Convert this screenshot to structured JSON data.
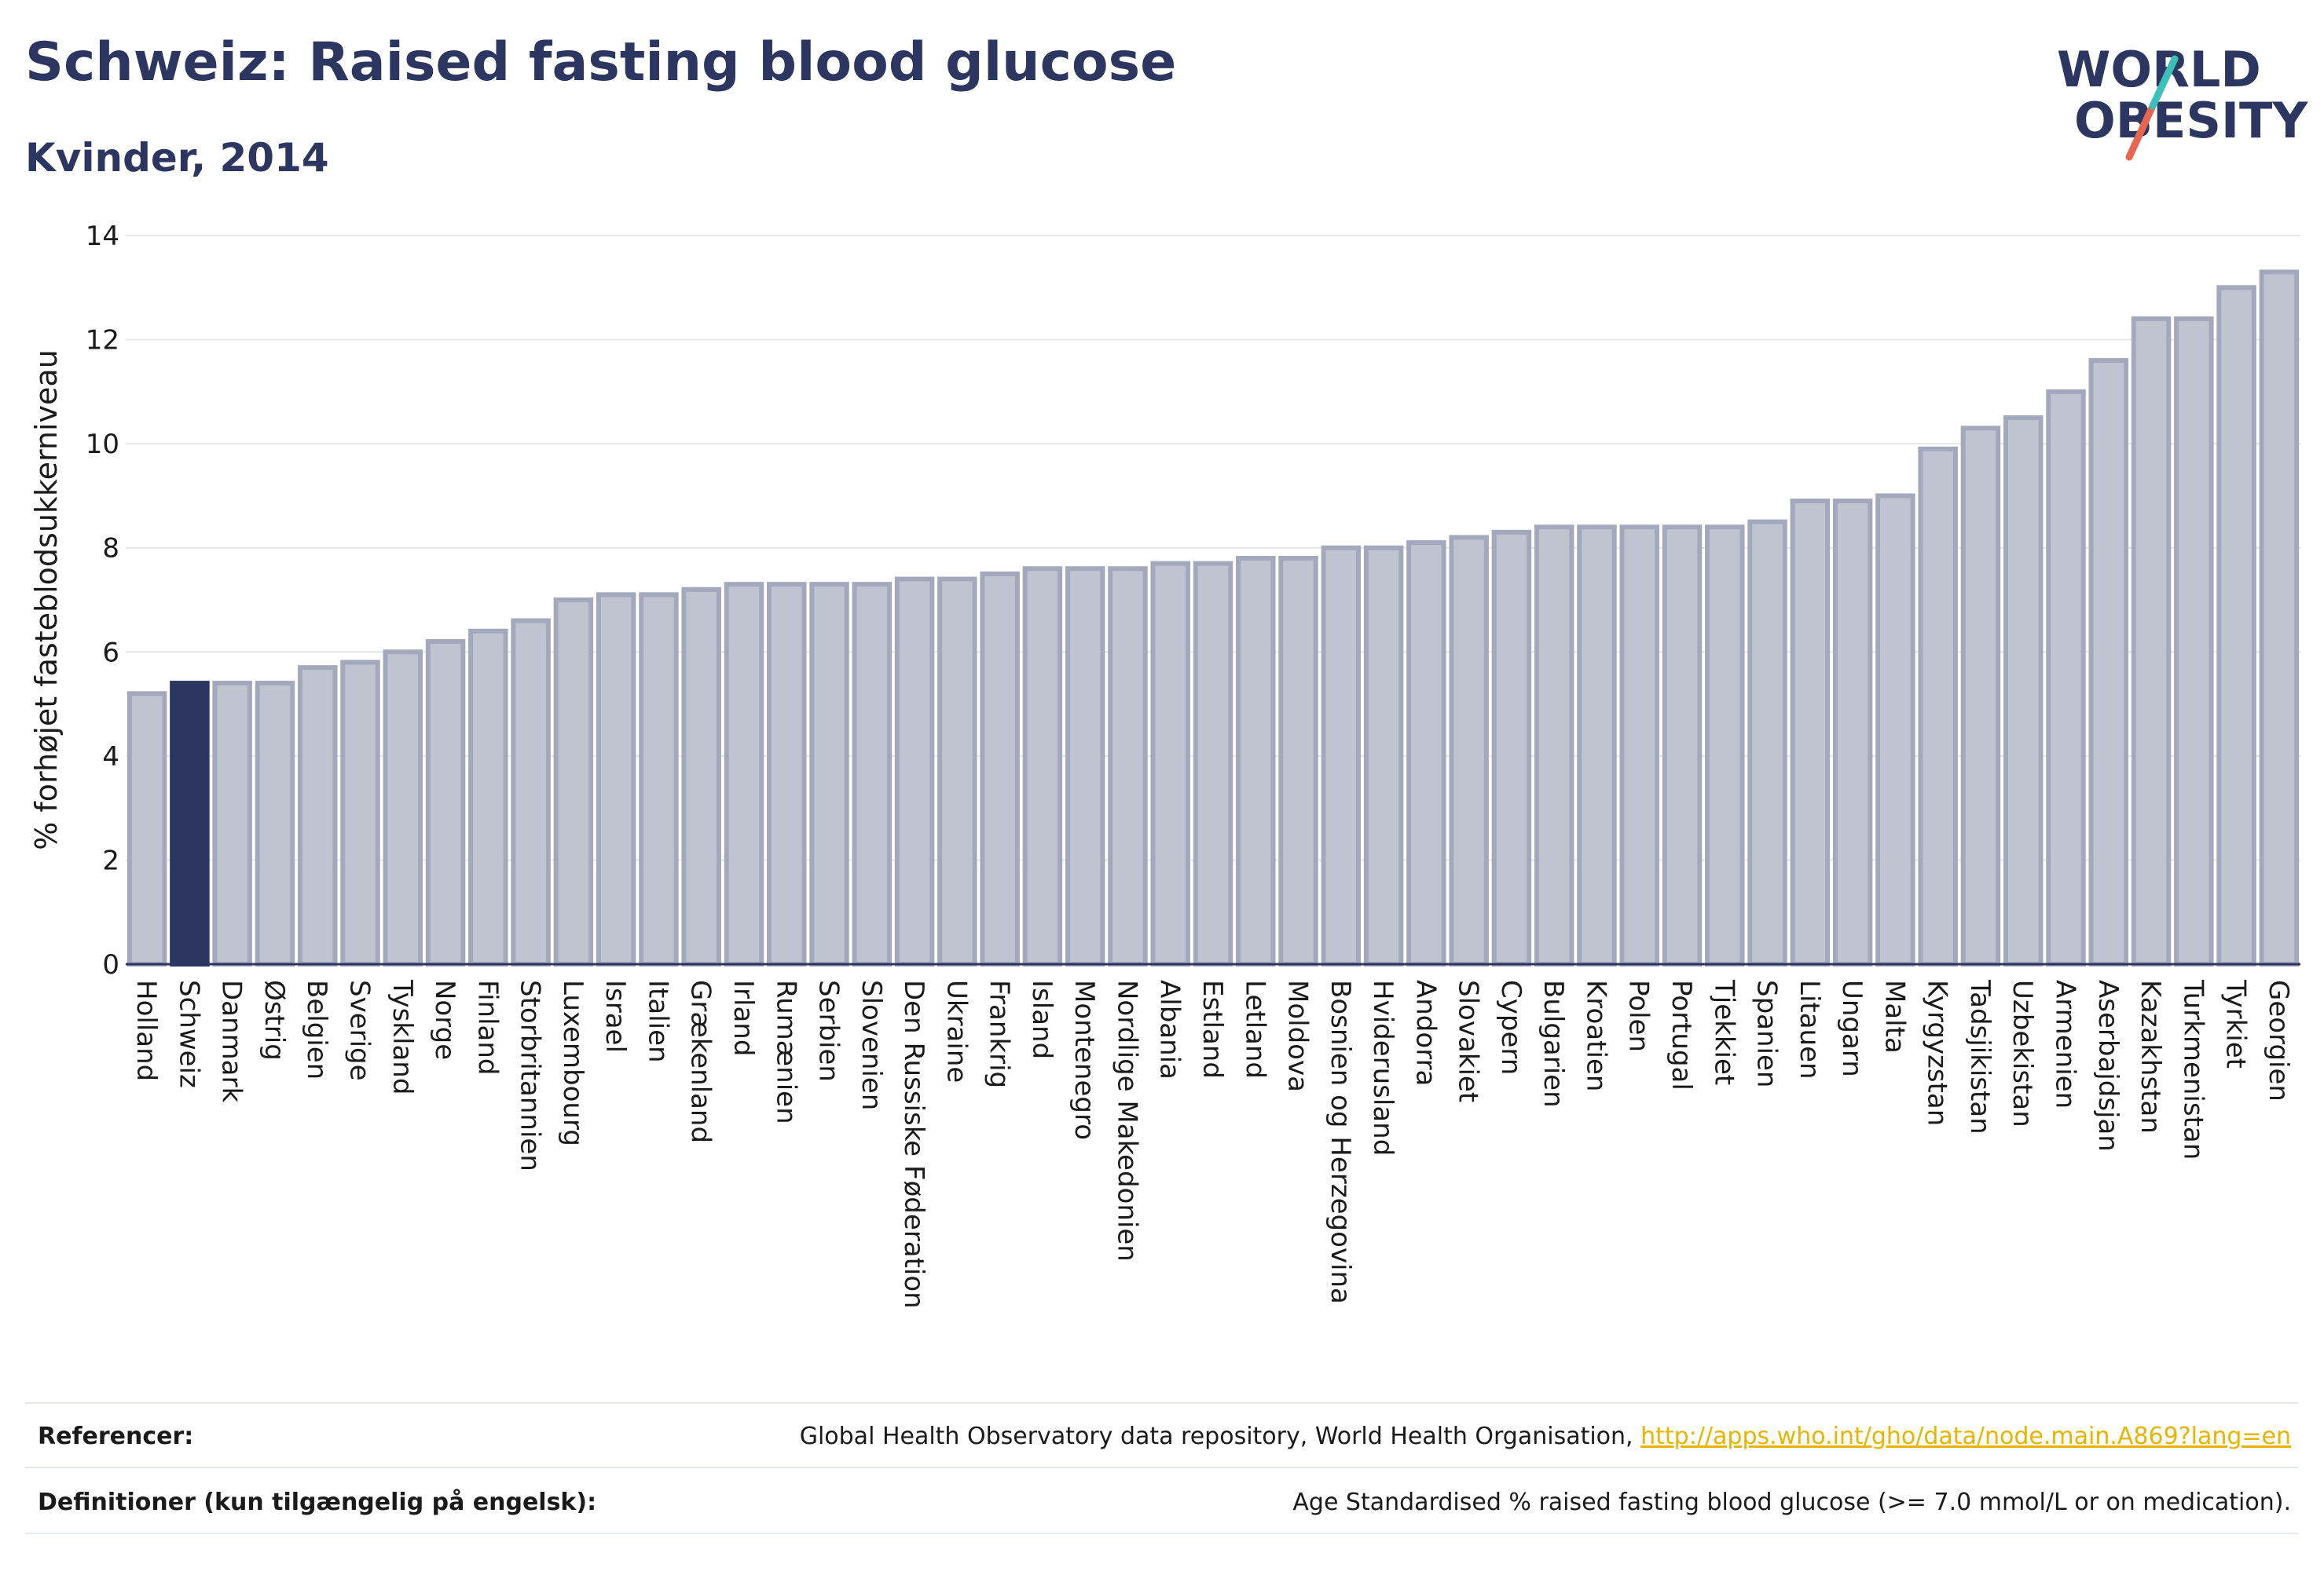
{
  "header": {
    "title": "Schweiz: Raised fasting blood glucose",
    "subtitle": "Kvinder, 2014"
  },
  "logo": {
    "line1": "WORLD",
    "line2": "OBESITY",
    "accent_colors": [
      "#3bbfb8",
      "#e8664f"
    ],
    "text_color": "#2d3561"
  },
  "colors": {
    "bar": "#c0c4d0",
    "bar_stroke": "#a3a8bd",
    "highlight": "#2d3561",
    "grid": "#e6e6e6",
    "axis": "#2d3561"
  },
  "chart_data": {
    "type": "bar",
    "title": "Schweiz: Raised fasting blood glucose",
    "subtitle": "Kvinder, 2014",
    "ylabel": "% forhøjet fasteblodsukkerniveau",
    "xlabel": "",
    "ylim": [
      0,
      14
    ],
    "yticks": [
      0,
      2,
      4,
      6,
      8,
      10,
      12,
      14
    ],
    "grid": true,
    "highlight": "Schweiz",
    "categories": [
      "Holland",
      "Schweiz",
      "Danmark",
      "Østrig",
      "Belgien",
      "Sverige",
      "Tyskland",
      "Norge",
      "Finland",
      "Storbritannien",
      "Luxembourg",
      "Israel",
      "Italien",
      "Grækenland",
      "Irland",
      "Rumænien",
      "Serbien",
      "Slovenien",
      "Den Russiske Føderation",
      "Ukraine",
      "Frankrig",
      "Island",
      "Montenegro",
      "Nordlige Makedonien",
      "Albania",
      "Estland",
      "Letland",
      "Moldova",
      "Bosnien og Herzegovina",
      "Hviderusland",
      "Andorra",
      "Slovakiet",
      "Cypern",
      "Bulgarien",
      "Kroatien",
      "Polen",
      "Portugal",
      "Tjekkiet",
      "Spanien",
      "Litauen",
      "Ungarn",
      "Malta",
      "Kyrgyzstan",
      "Tadsjikistan",
      "Uzbekistan",
      "Armenien",
      "Aserbajdsjan",
      "Kazakhstan",
      "Turkmenistan",
      "Tyrkiet",
      "Georgien"
    ],
    "values": [
      5.2,
      5.4,
      5.4,
      5.4,
      5.7,
      5.8,
      6.0,
      6.2,
      6.4,
      6.6,
      7.0,
      7.1,
      7.1,
      7.2,
      7.3,
      7.3,
      7.3,
      7.3,
      7.4,
      7.4,
      7.5,
      7.6,
      7.6,
      7.6,
      7.7,
      7.7,
      7.8,
      7.8,
      8.0,
      8.0,
      8.1,
      8.2,
      8.3,
      8.4,
      8.4,
      8.4,
      8.4,
      8.4,
      8.5,
      8.9,
      8.9,
      9.0,
      9.9,
      10.3,
      10.5,
      11.0,
      11.6,
      12.4,
      12.4,
      13.0,
      13.3
    ]
  },
  "footer": {
    "references_label": "Referencer:",
    "references_text": "Global Health Observatory data repository, World Health Organisation,",
    "references_link": "http://apps.who.int/gho/data/node.main.A869?lang=en",
    "definitions_label": "Definitioner (kun tilgængelig på engelsk):",
    "definitions_text": "Age Standardised % raised fasting blood glucose (>= 7.0 mmol/L or on medication)."
  }
}
